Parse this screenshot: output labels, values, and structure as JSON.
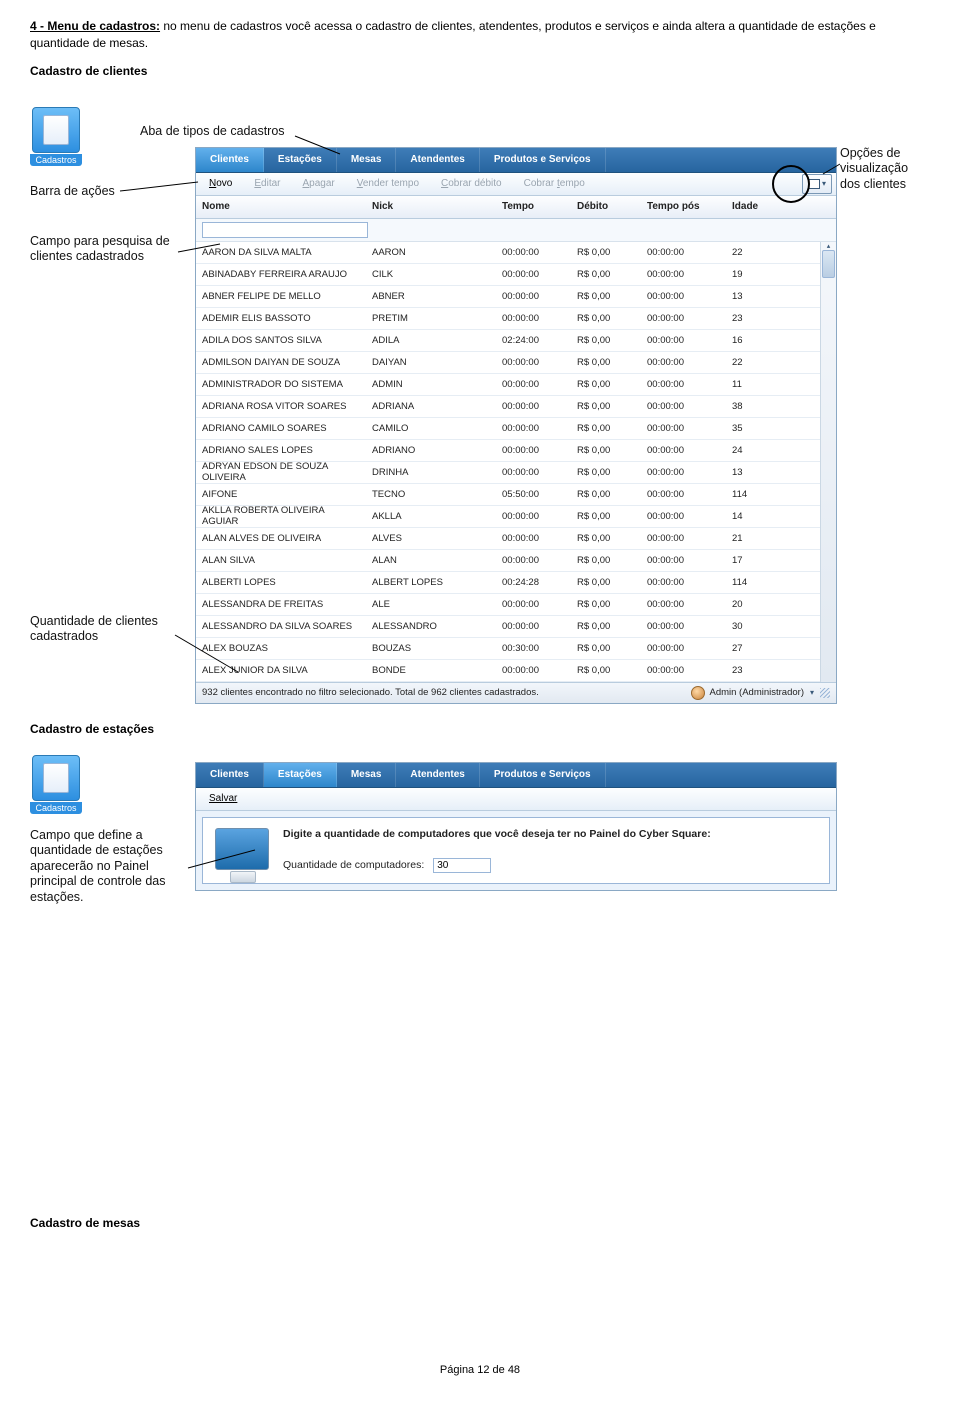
{
  "intro": {
    "lead": "4 - Menu de cadastros:",
    "text": " no menu de cadastros você acessa o cadastro de clientes, atendentes, produtos e serviços e ainda altera a quantidade de estações e quantidade de mesas."
  },
  "section1_title": "Cadastro de clientes",
  "section2_title": "Cadastro de estações",
  "section3_title": "Cadastro de mesas",
  "cad_icon_label": "Cadastros",
  "annotations": {
    "aba": "Aba de tipos de cadastros",
    "barra": "Barra de ações",
    "opcoes1": "Opções de",
    "opcoes2": "visualização",
    "opcoes3": "dos clientes",
    "campo1": "Campo para pesquisa de",
    "campo2": "clientes cadastrados",
    "qtd1": "Quantidade de clientes",
    "qtd2": "cadastrados",
    "est1": "Campo que define a",
    "est2": "quantidade de estações",
    "est3": "aparecerão no Painel",
    "est4": "principal de controle das",
    "est5": "estações."
  },
  "tabs": [
    "Clientes",
    "Estações",
    "Mesas",
    "Atendentes",
    "Produtos e Serviços"
  ],
  "toolbar_clientes": [
    {
      "label": "Novo",
      "u": "N",
      "enabled": true
    },
    {
      "label": "Editar",
      "u": "E",
      "enabled": false
    },
    {
      "label": "Apagar",
      "u": "A",
      "enabled": false
    },
    {
      "label": "Vender tempo",
      "u": "V",
      "enabled": false
    },
    {
      "label": "Cobrar débito",
      "u": "C",
      "enabled": false
    },
    {
      "label": "Cobrar tempo",
      "u": "t",
      "enabled": false
    }
  ],
  "columns": [
    "Nome",
    "Nick",
    "Tempo",
    "Débito",
    "Tempo pós",
    "Idade"
  ],
  "rows": [
    [
      "AARON DA SILVA MALTA",
      "AARON",
      "00:00:00",
      "R$ 0,00",
      "00:00:00",
      "22"
    ],
    [
      "ABINADABY FERREIRA ARAUJO",
      "CILK",
      "00:00:00",
      "R$ 0,00",
      "00:00:00",
      "19"
    ],
    [
      "ABNER FELIPE DE MELLO",
      "ABNER",
      "00:00:00",
      "R$ 0,00",
      "00:00:00",
      "13"
    ],
    [
      "ADEMIR ELIS BASSOTO",
      "PRETIM",
      "00:00:00",
      "R$ 0,00",
      "00:00:00",
      "23"
    ],
    [
      "ADILA DOS SANTOS SILVA",
      "ADILA",
      "02:24:00",
      "R$ 0,00",
      "00:00:00",
      "16"
    ],
    [
      "ADMILSON DAIYAN DE SOUZA",
      "DAIYAN",
      "00:00:00",
      "R$ 0,00",
      "00:00:00",
      "22"
    ],
    [
      "ADMINISTRADOR DO SISTEMA",
      "ADMIN",
      "00:00:00",
      "R$ 0,00",
      "00:00:00",
      "11"
    ],
    [
      "ADRIANA ROSA VITOR SOARES",
      "ADRIANA",
      "00:00:00",
      "R$ 0,00",
      "00:00:00",
      "38"
    ],
    [
      "ADRIANO CAMILO SOARES",
      "CAMILO",
      "00:00:00",
      "R$ 0,00",
      "00:00:00",
      "35"
    ],
    [
      "ADRIANO SALES LOPES",
      "ADRIANO",
      "00:00:00",
      "R$ 0,00",
      "00:00:00",
      "24"
    ],
    [
      "ADRYAN EDSON DE SOUZA OLIVEIRA",
      "DRINHA",
      "00:00:00",
      "R$ 0,00",
      "00:00:00",
      "13"
    ],
    [
      "AIFONE",
      "TECNO",
      "05:50:00",
      "R$ 0,00",
      "00:00:00",
      "114"
    ],
    [
      "AKLLA ROBERTA OLIVEIRA AGUIAR",
      "AKLLA",
      "00:00:00",
      "R$ 0,00",
      "00:00:00",
      "14"
    ],
    [
      "ALAN ALVES DE OLIVEIRA",
      "ALVES",
      "00:00:00",
      "R$ 0,00",
      "00:00:00",
      "21"
    ],
    [
      "ALAN SILVA",
      "ALAN",
      "00:00:00",
      "R$ 0,00",
      "00:00:00",
      "17"
    ],
    [
      "ALBERTI LOPES",
      "ALBERT LOPES",
      "00:24:28",
      "R$ 0,00",
      "00:00:00",
      "114"
    ],
    [
      "ALESSANDRA DE FREITAS",
      "ALE",
      "00:00:00",
      "R$ 0,00",
      "00:00:00",
      "20"
    ],
    [
      "ALESSANDRO DA SILVA SOARES",
      "ALESSANDRO",
      "00:00:00",
      "R$ 0,00",
      "00:00:00",
      "30"
    ],
    [
      "ALEX BOUZAS",
      "BOUZAS",
      "00:30:00",
      "R$ 0,00",
      "00:00:00",
      "27"
    ],
    [
      "ALEX JUNIOR DA SILVA",
      "BONDE",
      "00:00:00",
      "R$ 0,00",
      "00:00:00",
      "23"
    ]
  ],
  "status_text": "932 clientes encontrado no filtro selecionado. Total de 962 clientes cadastrados.",
  "status_user": "Admin (Administrador)",
  "estacoes": {
    "toolbar_label": "Salvar",
    "prompt": "Digite a quantidade de computadores que você deseja ter no Painel do Cyber Square:",
    "field_label": "Quantidade de computadores:",
    "field_value": "30"
  },
  "footer": "Página 12 de 48"
}
